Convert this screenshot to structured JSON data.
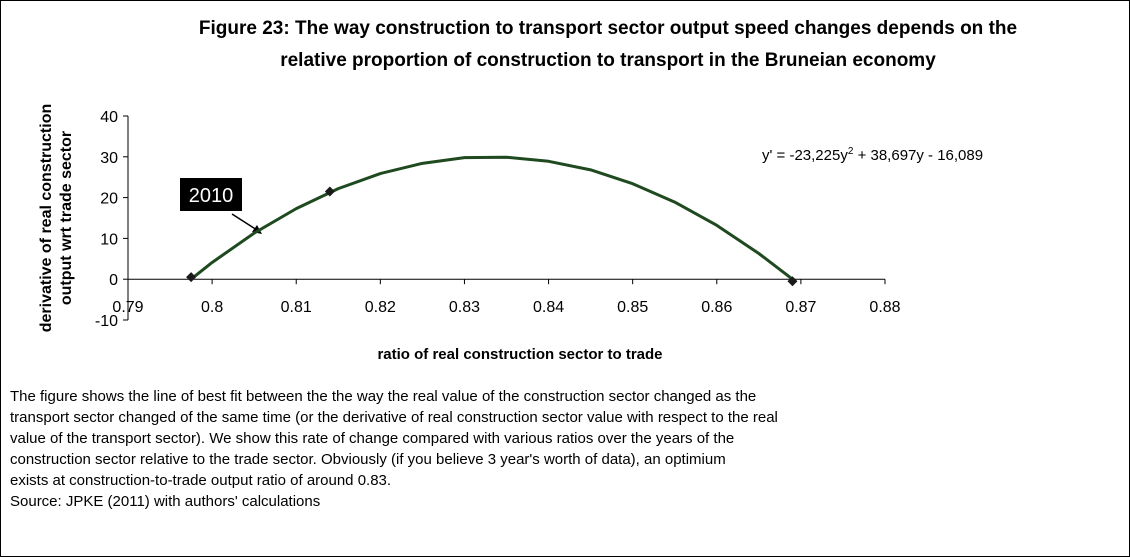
{
  "chart_data": {
    "type": "line",
    "title": [
      "Figure 23: The way construction to transport sector output speed changes depends on the",
      "relative proportion of construction to transport in the Bruneian economy"
    ],
    "y_label": [
      "derivative of real construction",
      "output wrt trade sector"
    ],
    "x_label": "ratio of real construction sector to trade",
    "annotation": "2010",
    "equation": [
      "y' = -23,225y",
      "2",
      " + 38,697y - 16,089"
    ],
    "xlim": [
      0.79,
      0.88
    ],
    "xticks": [
      0.79,
      0.8,
      0.81,
      0.82,
      0.83,
      0.84,
      0.85,
      0.86,
      0.87,
      0.88
    ],
    "ylim": [
      -10,
      40
    ],
    "yticks": [
      -10,
      0,
      10,
      20,
      30,
      40
    ],
    "series": [
      {
        "color": "#1f4a1f",
        "x": [
          0.7975,
          0.8,
          0.805,
          0.81,
          0.815,
          0.82,
          0.825,
          0.83,
          0.835,
          0.84,
          0.845,
          0.85,
          0.855,
          0.86,
          0.865,
          0.869
        ],
        "values": [
          0,
          4.1,
          11.3,
          17.3,
          22.2,
          25.9,
          28.4,
          29.8,
          29.9,
          28.9,
          26.8,
          23.4,
          18.9,
          13.2,
          6.3,
          0
        ]
      },
      {
        "color": "#1a1a1a",
        "marker": "diamond",
        "x": [
          0.7975,
          0.814,
          0.869
        ],
        "values": [
          0.5,
          21.5,
          -0.5
        ]
      }
    ],
    "caption": [
      "The figure shows the line of best fit between the the way the real value of the construction sector changed as the",
      "transport sector changed of the same time (or the derivative of real construction sector value with respect to the real",
      "value of the transport sector). We show this rate of change compared with various ratios over the years of the",
      "construction sector relative to the trade sector. Obviously (if you believe 3 year's worth of data), an optimium",
      "exists at construction-to-trade output ratio of around 0.83."
    ],
    "source": "Source: JPKE (2011) with authors' calculations"
  }
}
